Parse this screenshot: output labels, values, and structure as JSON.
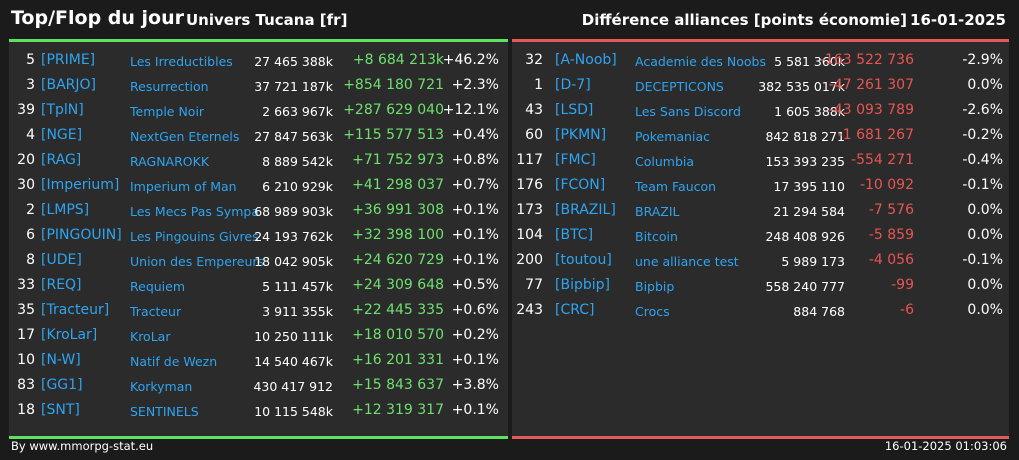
{
  "header": {
    "title": "Top/Flop du jour",
    "subtitle": "Univers Tucana [fr]",
    "right_title": "Différence alliances [points économie]",
    "date": "16-01-2025"
  },
  "top": [
    {
      "rank": "5",
      "tag": "[PRIME]",
      "name": "Les Irreductibles",
      "points": "27 465 388k",
      "diff": "+8 684 213k",
      "pct": "+46.2%"
    },
    {
      "rank": "3",
      "tag": "[BARJO]",
      "name": "Resurrection",
      "points": "37 721 187k",
      "diff": "+854 180 721",
      "pct": "+2.3%"
    },
    {
      "rank": "39",
      "tag": "[TplN]",
      "name": "Temple Noir",
      "points": "2 663 967k",
      "diff": "+287 629 040",
      "pct": "+12.1%"
    },
    {
      "rank": "4",
      "tag": "[NGE]",
      "name": "NextGen Eternels",
      "points": "27 847 563k",
      "diff": "+115 577 513",
      "pct": "+0.4%"
    },
    {
      "rank": "20",
      "tag": "[RAG]",
      "name": "RAGNAROKK",
      "points": "8 889 542k",
      "diff": "+71 752 973",
      "pct": "+0.8%"
    },
    {
      "rank": "30",
      "tag": "[Imperium]",
      "name": "Imperium of Man",
      "points": "6 210 929k",
      "diff": "+41 298 037",
      "pct": "+0.7%"
    },
    {
      "rank": "2",
      "tag": "[LMPS]",
      "name": "Les Mecs Pas Sympa",
      "points": "68 989 903k",
      "diff": "+36 991 308",
      "pct": "+0.1%"
    },
    {
      "rank": "6",
      "tag": "[PINGOUIN]",
      "name": "Les Pingouins Givres",
      "points": "24 193 762k",
      "diff": "+32 398 100",
      "pct": "+0.1%"
    },
    {
      "rank": "8",
      "tag": "[UDE]",
      "name": "Union des Empereurs",
      "points": "18 042 905k",
      "diff": "+24 620 729",
      "pct": "+0.1%"
    },
    {
      "rank": "33",
      "tag": "[REQ]",
      "name": "Requiem",
      "points": "5 111 457k",
      "diff": "+24 309 648",
      "pct": "+0.5%"
    },
    {
      "rank": "35",
      "tag": "[Tracteur]",
      "name": "Tracteur",
      "points": "3 911 355k",
      "diff": "+22 445 335",
      "pct": "+0.6%"
    },
    {
      "rank": "17",
      "tag": "[KroLar]",
      "name": "KroLar",
      "points": "10 250 111k",
      "diff": "+18 010 570",
      "pct": "+0.2%"
    },
    {
      "rank": "10",
      "tag": "[N-W]",
      "name": "Natif de Wezn",
      "points": "14 540 467k",
      "diff": "+16 201 331",
      "pct": "+0.1%"
    },
    {
      "rank": "83",
      "tag": "[GG1]",
      "name": "Korkyman",
      "points": "430 417 912",
      "diff": "+15 843 637",
      "pct": "+3.8%"
    },
    {
      "rank": "18",
      "tag": "[SNT]",
      "name": "SENTINELS",
      "points": "10 115 548k",
      "diff": "+12 319 317",
      "pct": "+0.1%"
    }
  ],
  "flop": [
    {
      "rank": "32",
      "tag": "[A-Noob]",
      "name": "Academie des Noobs",
      "points": "5 581 360k",
      "diff": "-163 522 736",
      "pct": "-2.9%"
    },
    {
      "rank": "1",
      "tag": "[D-7]",
      "name": "DECEPTICONS",
      "points": "382 535 017k",
      "diff": "-47 261 307",
      "pct": "0.0%"
    },
    {
      "rank": "43",
      "tag": "[LSD]",
      "name": "Les Sans Discord",
      "points": "1 605 388k",
      "diff": "-43 093 789",
      "pct": "-2.6%"
    },
    {
      "rank": "60",
      "tag": "[PKMN]",
      "name": "Pokemaniac",
      "points": "842 818 271",
      "diff": "-1 681 267",
      "pct": "-0.2%"
    },
    {
      "rank": "117",
      "tag": "[FMC]",
      "name": "Columbia",
      "points": "153 393 235",
      "diff": "-554 271",
      "pct": "-0.4%"
    },
    {
      "rank": "176",
      "tag": "[FCON]",
      "name": "Team Faucon",
      "points": "17 395 110",
      "diff": "-10 092",
      "pct": "-0.1%"
    },
    {
      "rank": "173",
      "tag": "[BRAZIL]",
      "name": "BRAZIL",
      "points": "21 294 584",
      "diff": "-7 576",
      "pct": "0.0%"
    },
    {
      "rank": "104",
      "tag": "[BTC]",
      "name": "Bitcoin",
      "points": "248 408 926",
      "diff": "-5 859",
      "pct": "0.0%"
    },
    {
      "rank": "200",
      "tag": "[toutou]",
      "name": "une alliance test",
      "points": "5 989 173",
      "diff": "-4 056",
      "pct": "-0.1%"
    },
    {
      "rank": "77",
      "tag": "[Bipbip]",
      "name": "Bipbip",
      "points": "558 240 777",
      "diff": "-99",
      "pct": "0.0%"
    },
    {
      "rank": "243",
      "tag": "[CRC]",
      "name": "Crocs",
      "points": "884 768",
      "diff": "-6",
      "pct": "0.0%"
    }
  ],
  "footer": {
    "source": "By www.mmorpg-stat.eu",
    "timestamp": "16-01-2025 01:03:06"
  },
  "colors": {
    "positive": "#6ee06e",
    "negative": "#e85454",
    "tag": "#2ea4f0",
    "panel": "#2b2b2b",
    "background": "#1b1b1b"
  }
}
